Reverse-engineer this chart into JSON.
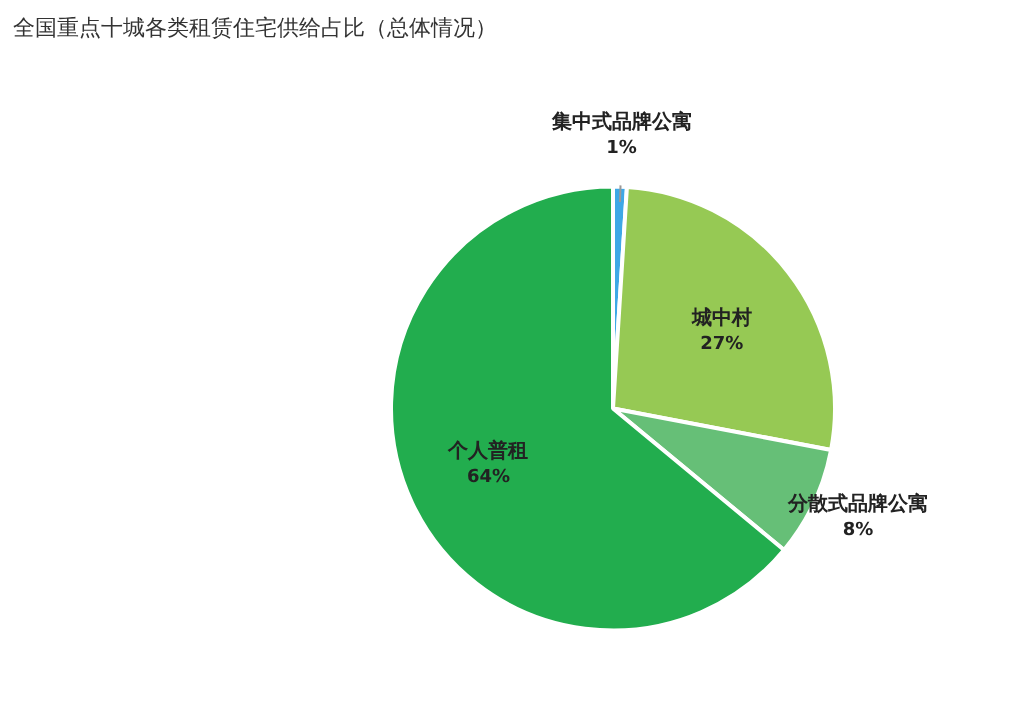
{
  "chart_data": {
    "type": "pie",
    "title": "全国重点十城各类租赁住宅供给占比（总体情况）",
    "categories": [
      "集中式品牌公寓",
      "城中村",
      "分散式品牌公寓",
      "个人普租"
    ],
    "values": [
      1,
      27,
      8,
      64
    ],
    "colors": [
      "#3ea8e6",
      "#96c954",
      "#66bf77",
      "#22ad4e"
    ],
    "value_labels": [
      "1%",
      "27%",
      "8%",
      "64%"
    ]
  }
}
